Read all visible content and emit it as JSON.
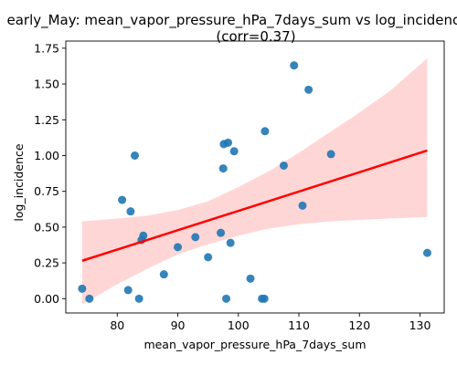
{
  "chart_data": {
    "type": "scatter",
    "title_line1": "early_May: mean_vapor_pressure_hPa_7days_sum vs log_incidence",
    "title_line2": "(corr=0.37)",
    "xlabel": "mean_vapor_pressure_hPa_7days_sum",
    "ylabel": "log_incidence",
    "xlim": [
      71.5,
      134
    ],
    "ylim": [
      -0.1,
      1.8
    ],
    "xticks": [
      80,
      90,
      100,
      110,
      120,
      130
    ],
    "yticks": [
      0.0,
      0.25,
      0.5,
      0.75,
      1.0,
      1.25,
      1.5,
      1.75
    ],
    "xtick_labels": [
      "80",
      "90",
      "100",
      "110",
      "120",
      "130"
    ],
    "ytick_labels": [
      "0.00",
      "0.25",
      "0.50",
      "0.75",
      "1.00",
      "1.25",
      "1.50",
      "1.75"
    ],
    "points": [
      {
        "x": 74.2,
        "y": 0.07
      },
      {
        "x": 75.4,
        "y": 0.0
      },
      {
        "x": 80.8,
        "y": 0.69
      },
      {
        "x": 81.8,
        "y": 0.06
      },
      {
        "x": 82.2,
        "y": 0.61
      },
      {
        "x": 82.9,
        "y": 1.0
      },
      {
        "x": 83.6,
        "y": 0.0
      },
      {
        "x": 84.0,
        "y": 0.41
      },
      {
        "x": 84.3,
        "y": 0.44
      },
      {
        "x": 87.7,
        "y": 0.17
      },
      {
        "x": 90.0,
        "y": 0.36
      },
      {
        "x": 92.9,
        "y": 0.43
      },
      {
        "x": 95.0,
        "y": 0.29
      },
      {
        "x": 97.1,
        "y": 0.46
      },
      {
        "x": 97.5,
        "y": 0.91
      },
      {
        "x": 97.6,
        "y": 1.08
      },
      {
        "x": 98.0,
        "y": 0.0
      },
      {
        "x": 98.3,
        "y": 1.09
      },
      {
        "x": 98.7,
        "y": 0.39
      },
      {
        "x": 99.3,
        "y": 1.03
      },
      {
        "x": 102.0,
        "y": 0.14
      },
      {
        "x": 103.9,
        "y": 0.0
      },
      {
        "x": 104.3,
        "y": 0.0
      },
      {
        "x": 104.4,
        "y": 1.17
      },
      {
        "x": 107.5,
        "y": 0.93
      },
      {
        "x": 109.2,
        "y": 1.63
      },
      {
        "x": 110.6,
        "y": 0.65
      },
      {
        "x": 111.6,
        "y": 1.46
      },
      {
        "x": 115.3,
        "y": 1.01
      },
      {
        "x": 131.2,
        "y": 0.32
      }
    ],
    "regression": {
      "x": [
        74.2,
        131.2
      ],
      "y": [
        0.265,
        1.035
      ]
    },
    "confidence_band": {
      "x": [
        74.2,
        80,
        85,
        90,
        95,
        100,
        105,
        110,
        115,
        120,
        125,
        131.2
      ],
      "upper": [
        0.54,
        0.56,
        0.58,
        0.62,
        0.68,
        0.78,
        0.89,
        1.02,
        1.16,
        1.3,
        1.45,
        1.68
      ],
      "lower": [
        -0.04,
        0.1,
        0.21,
        0.31,
        0.38,
        0.44,
        0.49,
        0.52,
        0.54,
        0.55,
        0.56,
        0.57
      ]
    },
    "colors": {
      "point": "#1f77b4",
      "line": "#ff0000",
      "band": "#ffcccc"
    },
    "grid": false
  }
}
